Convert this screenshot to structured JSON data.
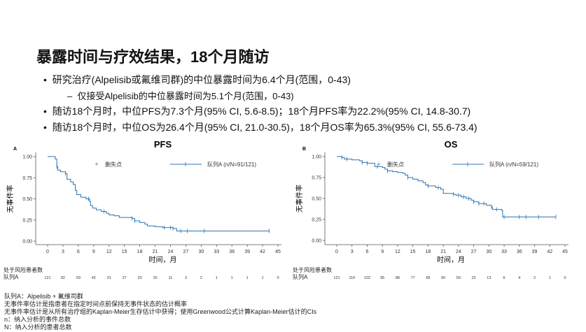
{
  "slide": {
    "title": "暴露时间与疗效结果，18个月随访",
    "bullets": [
      {
        "text": "研究治疗(Alpelisib或氟维司群)的中位暴露时间为6.4个月(范围，0-43)",
        "level": 1
      },
      {
        "text": "仅接受Alpelisib的中位暴露时间为5.1个月(范围，0-43)",
        "level": 2
      },
      {
        "text": "随访18个月时，中位PFS为7.3个月(95% CI, 5.6-8.5)；18个月PFS率为22.2%(95% CI, 14.8-30.7)",
        "level": 1
      },
      {
        "text": "随访18个月时，中位OS为26.4个月(95% CI, 21.0-30.5)，18个月OS率为65.3%(95% CI, 55.6-73.4)",
        "level": 1
      }
    ],
    "footnotes": [
      "队列A：Alpelisib + 氟维司群",
      "无事件率估计是指患者在指定时间点前保持无事件状态的估计概率",
      "无事件率估计是从所有治疗组的Kaplan-Meier生存估计中获得；使用Greenwood公式计算Kaplan-Meier估计的CIs",
      "n：纳入分析的事件总数",
      "N：纳入分析的患者总数"
    ]
  },
  "colors": {
    "curve": "#2a73b4",
    "axis": "#555555"
  },
  "chart_data": [
    {
      "type": "line",
      "panel": "A",
      "title": "PFS",
      "xlabel": "时间，月",
      "ylabel": "无事件率",
      "xlim": [
        0,
        45
      ],
      "ylim": [
        0,
        1
      ],
      "xticks": [
        0,
        3,
        6,
        9,
        12,
        15,
        18,
        21,
        24,
        27,
        30,
        33,
        36,
        39,
        42,
        45
      ],
      "yticks": [
        "0.00",
        "0.25",
        "0.50",
        "0.75",
        "1.00"
      ],
      "legend": {
        "censor_label": "删失点",
        "series_label": "队列A (n/N=91/121)",
        "placement": "top-right"
      },
      "steps": [
        [
          0,
          1.0
        ],
        [
          1.5,
          0.97
        ],
        [
          1.8,
          0.88
        ],
        [
          2,
          0.84
        ],
        [
          2.5,
          0.82
        ],
        [
          3.5,
          0.8
        ],
        [
          3.8,
          0.73
        ],
        [
          4.5,
          0.7
        ],
        [
          5,
          0.67
        ],
        [
          5.4,
          0.6
        ],
        [
          5.7,
          0.55
        ],
        [
          6.5,
          0.52
        ],
        [
          7.5,
          0.5
        ],
        [
          8.2,
          0.47
        ],
        [
          8.4,
          0.42
        ],
        [
          8.8,
          0.39
        ],
        [
          9.5,
          0.37
        ],
        [
          10.5,
          0.35
        ],
        [
          11.5,
          0.33
        ],
        [
          12,
          0.31
        ],
        [
          13,
          0.3
        ],
        [
          14,
          0.28
        ],
        [
          16.5,
          0.27
        ],
        [
          17,
          0.24
        ],
        [
          18,
          0.22
        ],
        [
          19,
          0.2
        ],
        [
          19.5,
          0.18
        ],
        [
          21,
          0.17
        ],
        [
          22.5,
          0.16
        ],
        [
          24.5,
          0.15
        ],
        [
          25.2,
          0.12
        ],
        [
          43.3,
          0.12
        ]
      ],
      "censors": [
        1.8,
        3.5,
        8,
        11,
        16.5,
        17,
        22.8,
        24,
        24.5,
        26,
        27.3,
        30.6,
        43.3
      ],
      "risk_table": {
        "header": "处于风险患者数",
        "row_label": "队列A",
        "values": [
          121,
          92,
          59,
          42,
          31,
          27,
          20,
          15,
          11,
          3,
          2,
          1,
          1,
          1,
          1,
          0
        ]
      }
    },
    {
      "type": "line",
      "panel": "B",
      "title": "OS",
      "xlabel": "时间，月",
      "ylabel": "无事件率",
      "xlim": [
        0,
        45
      ],
      "ylim": [
        0,
        1
      ],
      "xticks": [
        0,
        3,
        6,
        9,
        12,
        15,
        18,
        21,
        24,
        27,
        30,
        33,
        36,
        39,
        42,
        45
      ],
      "yticks": [
        "0.00",
        "0.25",
        "0.50",
        "0.75",
        "1.00"
      ],
      "legend": {
        "censor_label": "删失点",
        "series_label": "队列A (n/N=59/121)",
        "placement": "top-right"
      },
      "steps": [
        [
          0,
          1.0
        ],
        [
          1,
          0.99
        ],
        [
          1.5,
          0.97
        ],
        [
          3,
          0.96
        ],
        [
          4.5,
          0.95
        ],
        [
          5,
          0.93
        ],
        [
          6,
          0.92
        ],
        [
          7.5,
          0.88
        ],
        [
          9,
          0.87
        ],
        [
          9.5,
          0.85
        ],
        [
          10,
          0.83
        ],
        [
          11,
          0.82
        ],
        [
          12,
          0.81
        ],
        [
          13,
          0.8
        ],
        [
          13.5,
          0.78
        ],
        [
          14,
          0.75
        ],
        [
          15,
          0.73
        ],
        [
          16,
          0.71
        ],
        [
          17,
          0.69
        ],
        [
          17.5,
          0.66
        ],
        [
          18,
          0.65
        ],
        [
          19.5,
          0.63
        ],
        [
          20.5,
          0.61
        ],
        [
          21,
          0.56
        ],
        [
          23,
          0.55
        ],
        [
          23.5,
          0.54
        ],
        [
          24.5,
          0.52
        ],
        [
          25.5,
          0.5
        ],
        [
          26.5,
          0.48
        ],
        [
          27,
          0.46
        ],
        [
          28,
          0.44
        ],
        [
          29.5,
          0.42
        ],
        [
          30.5,
          0.4
        ],
        [
          30.7,
          0.37
        ],
        [
          32.5,
          0.36
        ],
        [
          32.7,
          0.28
        ],
        [
          43.2,
          0.28
        ]
      ],
      "censors": [
        1,
        2,
        5,
        6,
        8,
        10,
        14,
        18,
        20,
        23,
        24,
        25,
        26,
        27,
        28,
        29,
        30.5,
        31.5,
        33,
        36,
        37.3,
        39.8,
        43.2
      ],
      "risk_table": {
        "header": "处于风险患者数",
        "row_label": "队列A",
        "values": [
          121,
          110,
          102,
          95,
          88,
          77,
          68,
          60,
          50,
          22,
          13,
          6,
          4,
          2,
          1,
          0
        ]
      }
    }
  ]
}
